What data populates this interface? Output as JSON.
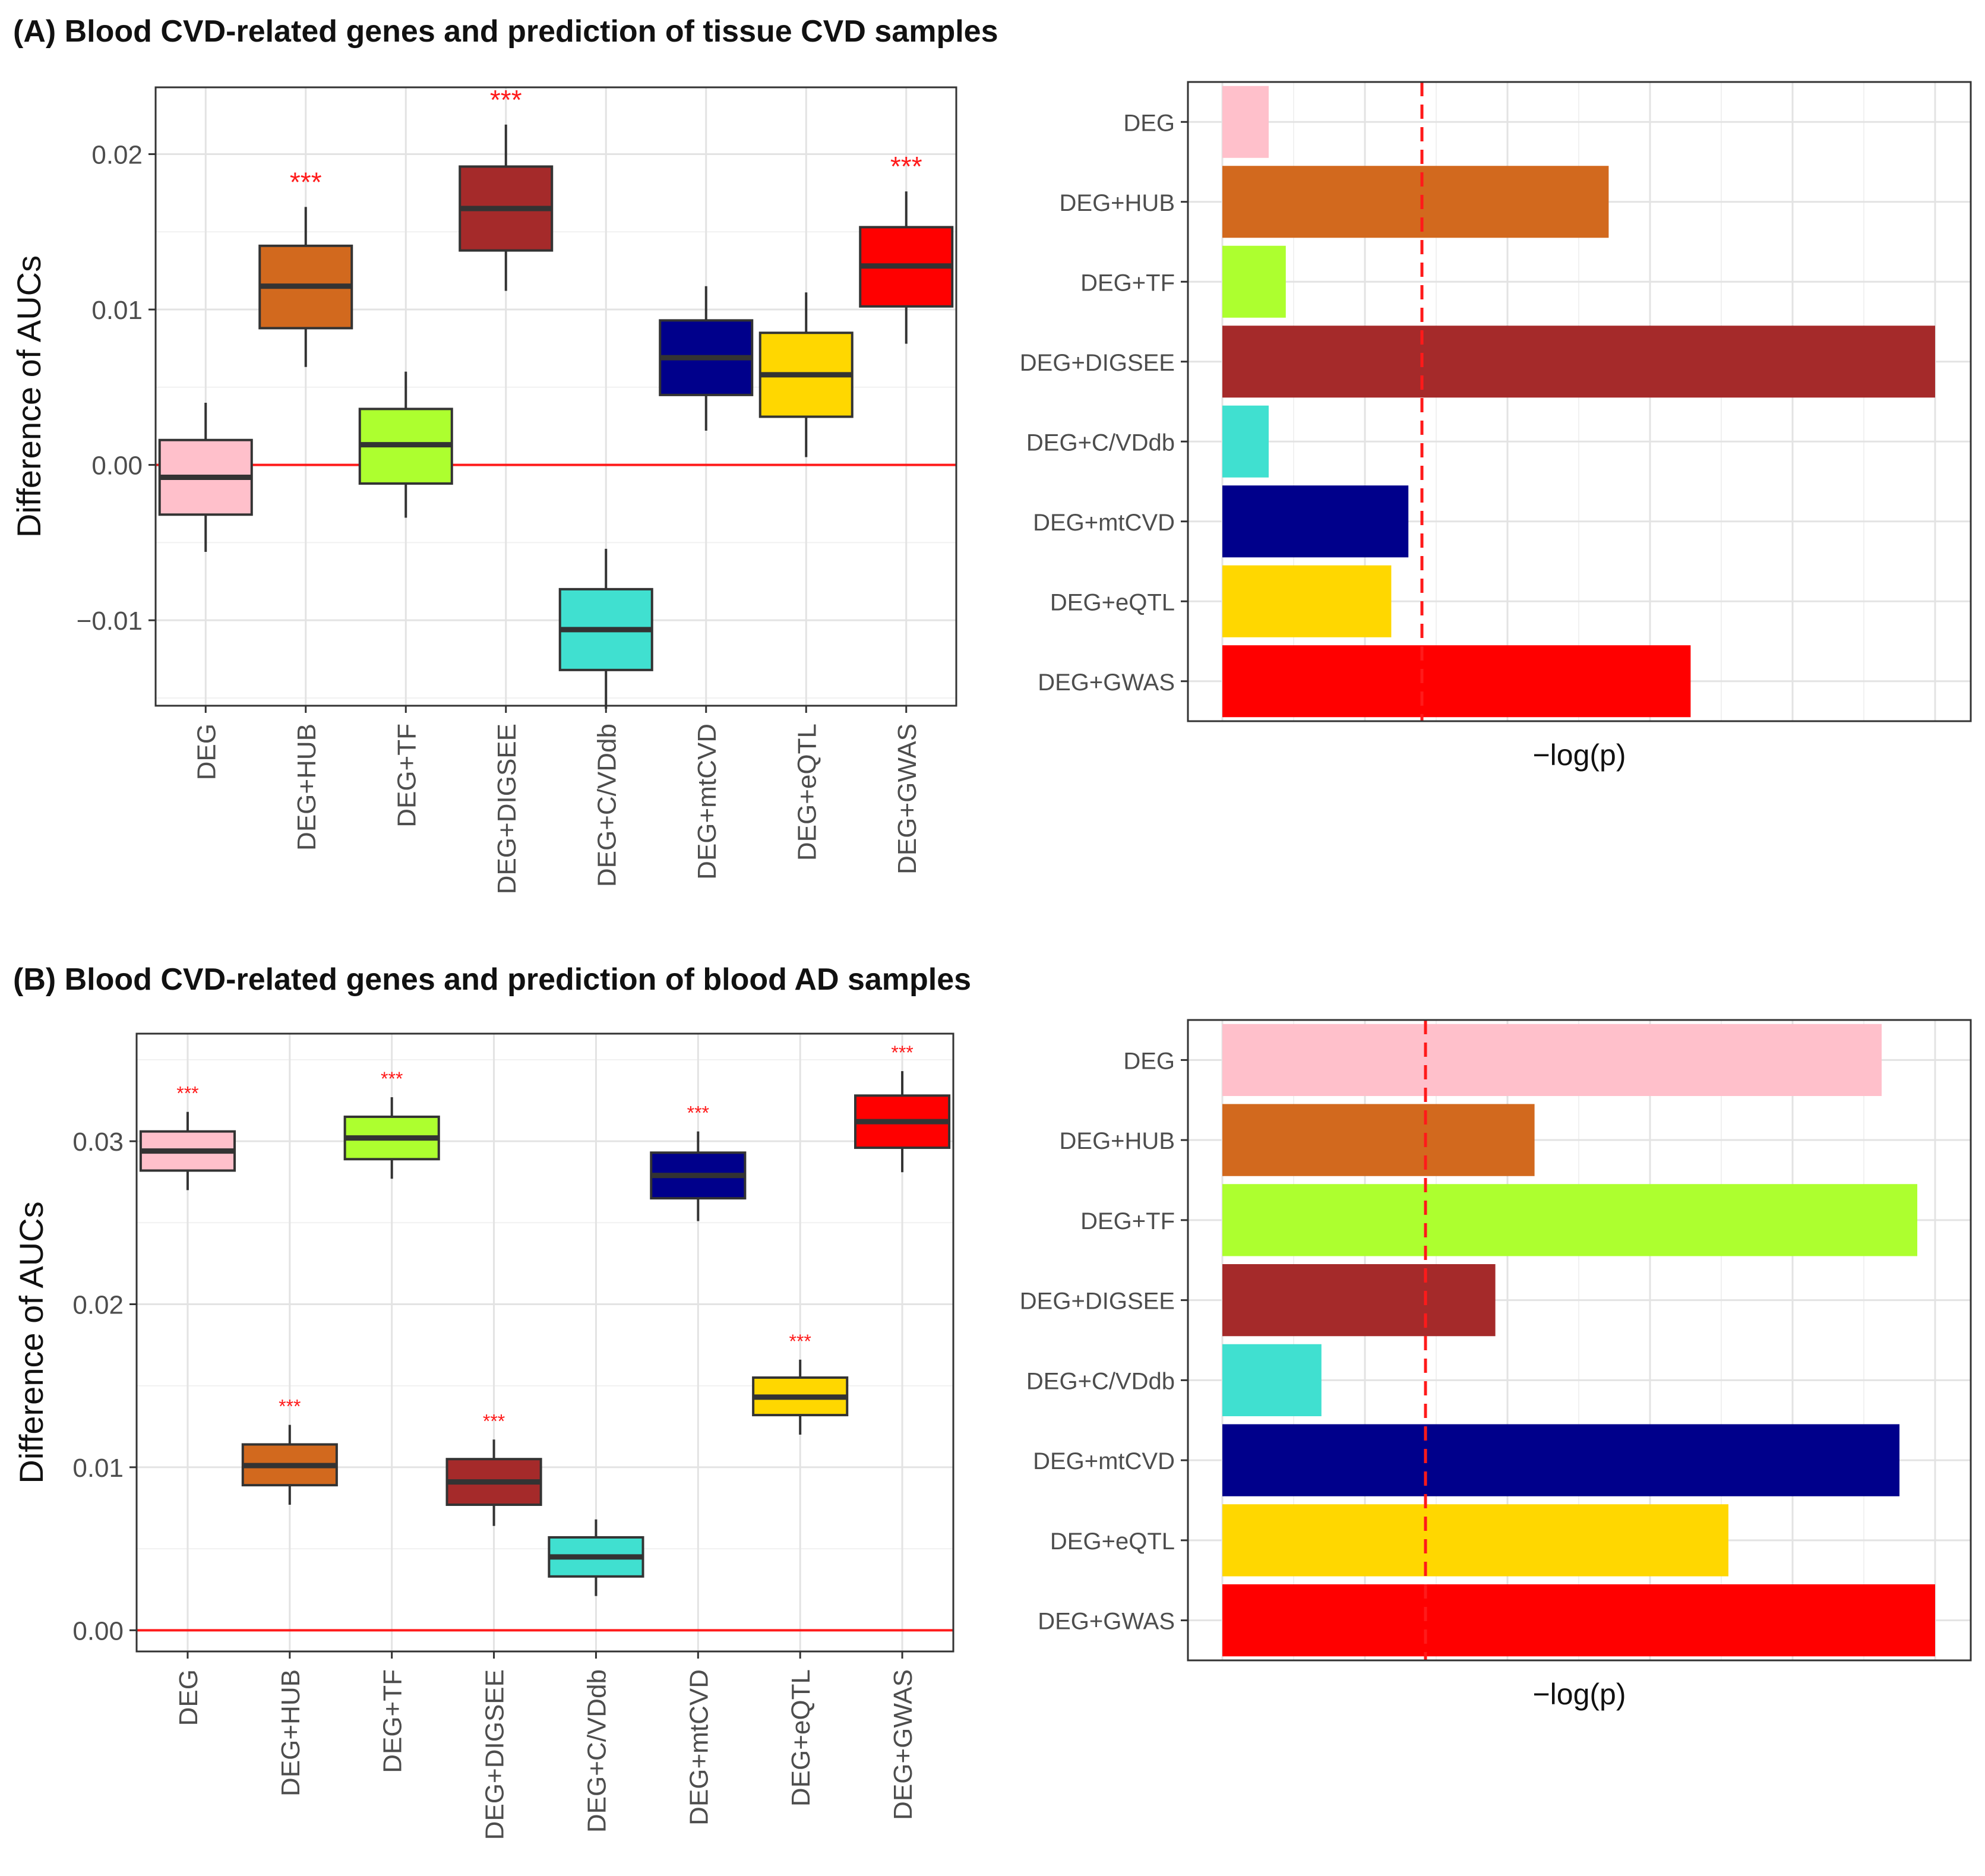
{
  "panels": [
    {
      "id": "A",
      "title": "(A) Blood CVD-related genes and prediction of tissue CVD samples",
      "box_plot": {
        "ylabel": "Difference of AUCs",
        "ylim": [
          -0.0155,
          0.0243
        ],
        "yticks": [
          -0.01,
          0.0,
          0.01,
          0.02
        ],
        "ytick_labels": [
          "−0.01",
          "0.00",
          "0.01",
          "0.02"
        ],
        "reference_line": 0,
        "significance_label": "***"
      },
      "bar_plot": {
        "xlabel": "−log(p)",
        "threshold_fraction": 0.28
      }
    },
    {
      "id": "B",
      "title": "(B) Blood CVD-related genes and prediction of blood AD samples",
      "box_plot": {
        "ylabel": "Difference of AUCs",
        "ylim": [
          -0.0013,
          0.0366
        ],
        "yticks": [
          0.0,
          0.01,
          0.02,
          0.03
        ],
        "ytick_labels": [
          "0.00",
          "0.01",
          "0.02",
          "0.03"
        ],
        "reference_line": 0,
        "significance_label": "***"
      },
      "bar_plot": {
        "xlabel": "−log(p)",
        "threshold_fraction": 0.285
      }
    }
  ],
  "chart_data": [
    {
      "type": "box",
      "panel": "A",
      "title": "(A) Blood CVD-related genes and prediction of tissue CVD samples",
      "ylabel": "Difference of AUCs",
      "ylim": [
        -0.0155,
        0.0243
      ],
      "categories": [
        "DEG",
        "DEG+HUB",
        "DEG+TF",
        "DEG+DIGSEE",
        "DEG+C/VDdb",
        "DEG+mtCVD",
        "DEG+eQTL",
        "DEG+GWAS"
      ],
      "colors": [
        "#FFC0CB",
        "#D2691E",
        "#ADFF2F",
        "#A52A2A",
        "#40E0D0",
        "#00008B",
        "#FFD700",
        "#FF0000"
      ],
      "whisker_low": [
        -0.0056,
        0.0063,
        -0.0034,
        0.0112,
        -0.0157,
        0.0022,
        0.0005,
        0.0078
      ],
      "q1": [
        -0.0032,
        0.0088,
        -0.0012,
        0.0138,
        -0.0132,
        0.0045,
        0.0031,
        0.0102
      ],
      "median": [
        -0.0008,
        0.0115,
        0.0013,
        0.0165,
        -0.0106,
        0.0069,
        0.0058,
        0.0128
      ],
      "q3": [
        0.0016,
        0.0141,
        0.0036,
        0.0192,
        -0.008,
        0.0093,
        0.0085,
        0.0153
      ],
      "whisker_high": [
        0.004,
        0.0166,
        0.006,
        0.0219,
        -0.0054,
        0.0115,
        0.0111,
        0.0176
      ],
      "significance": [
        "",
        "***",
        "",
        "***",
        "",
        "",
        "",
        "***"
      ]
    },
    {
      "type": "bar",
      "panel": "A",
      "orientation": "horizontal",
      "xlabel": "−log(p)",
      "categories": [
        "DEG",
        "DEG+HUB",
        "DEG+TF",
        "DEG+DIGSEE",
        "DEG+C/VDdb",
        "DEG+mtCVD",
        "DEG+eQTL",
        "DEG+GWAS"
      ],
      "colors": [
        "#FFC0CB",
        "#D2691E",
        "#ADFF2F",
        "#A52A2A",
        "#40E0D0",
        "#00008B",
        "#FFD700",
        "#FF0000"
      ],
      "values": [
        0.065,
        0.542,
        0.089,
        1.0,
        0.065,
        0.261,
        0.237,
        0.657
      ],
      "value_scale": "relative to largest bar (axis ticks unlabeled)",
      "threshold": 0.28
    },
    {
      "type": "box",
      "panel": "B",
      "title": "(B) Blood CVD-related genes and prediction of blood AD samples",
      "ylabel": "Difference of AUCs",
      "ylim": [
        -0.0013,
        0.0366
      ],
      "categories": [
        "DEG",
        "DEG+HUB",
        "DEG+TF",
        "DEG+DIGSEE",
        "DEG+C/VDdb",
        "DEG+mtCVD",
        "DEG+eQTL",
        "DEG+GWAS"
      ],
      "colors": [
        "#FFC0CB",
        "#D2691E",
        "#ADFF2F",
        "#A52A2A",
        "#40E0D0",
        "#00008B",
        "#FFD700",
        "#FF0000"
      ],
      "whisker_low": [
        0.027,
        0.0077,
        0.0277,
        0.0064,
        0.0021,
        0.0251,
        0.012,
        0.0281
      ],
      "q1": [
        0.0282,
        0.0089,
        0.0289,
        0.0077,
        0.0033,
        0.0265,
        0.0132,
        0.0296
      ],
      "median": [
        0.0294,
        0.0101,
        0.0302,
        0.0091,
        0.0045,
        0.0279,
        0.0143,
        0.0312
      ],
      "q3": [
        0.0306,
        0.0114,
        0.0315,
        0.0105,
        0.0057,
        0.0293,
        0.0155,
        0.0328
      ],
      "whisker_high": [
        0.0318,
        0.0126,
        0.0327,
        0.0117,
        0.0068,
        0.0306,
        0.0166,
        0.0343
      ],
      "significance": [
        "***",
        "***",
        "***",
        "***",
        "",
        "***",
        "***",
        "***"
      ]
    },
    {
      "type": "bar",
      "panel": "B",
      "orientation": "horizontal",
      "xlabel": "−log(p)",
      "categories": [
        "DEG",
        "DEG+HUB",
        "DEG+TF",
        "DEG+DIGSEE",
        "DEG+C/VDdb",
        "DEG+mtCVD",
        "DEG+eQTL",
        "DEG+GWAS"
      ],
      "colors": [
        "#FFC0CB",
        "#D2691E",
        "#ADFF2F",
        "#A52A2A",
        "#40E0D0",
        "#00008B",
        "#FFD700",
        "#FF0000"
      ],
      "values": [
        0.925,
        0.438,
        0.975,
        0.383,
        0.139,
        0.95,
        0.71,
        1.0
      ],
      "value_scale": "relative to largest bar (axis ticks unlabeled)",
      "threshold": 0.285
    }
  ]
}
